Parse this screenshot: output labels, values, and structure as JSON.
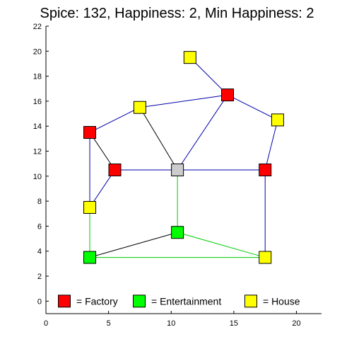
{
  "title": "Spice: 132, Happiness: 2, Min Happiness: 2",
  "chart_data": {
    "type": "scatter",
    "title": "Spice: 132, Happiness: 2, Min Happiness: 2",
    "xlabel": "",
    "ylabel": "",
    "xlim": [
      0,
      22
    ],
    "ylim": [
      -1,
      22
    ],
    "x_ticks": [
      0,
      5,
      10,
      15,
      20
    ],
    "y_ticks": [
      0,
      2,
      4,
      6,
      8,
      10,
      12,
      14,
      16,
      18,
      20,
      22
    ],
    "grid": false,
    "node_colors": {
      "factory": "#ff0000",
      "entertainment": "#00ff00",
      "house": "#ffff00",
      "empty": "#cccccc"
    },
    "edge_colors": {
      "blue": "#0000aa",
      "green": "#00cc00",
      "black": "#000000"
    },
    "nodes": [
      {
        "id": "A",
        "x": 11.5,
        "y": 19.5,
        "kind": "house"
      },
      {
        "id": "B",
        "x": 14.5,
        "y": 16.5,
        "kind": "factory"
      },
      {
        "id": "C",
        "x": 7.5,
        "y": 15.5,
        "kind": "house"
      },
      {
        "id": "D",
        "x": 18.5,
        "y": 14.5,
        "kind": "house"
      },
      {
        "id": "E",
        "x": 3.5,
        "y": 13.5,
        "kind": "factory"
      },
      {
        "id": "F",
        "x": 5.5,
        "y": 10.5,
        "kind": "factory"
      },
      {
        "id": "G",
        "x": 10.5,
        "y": 10.5,
        "kind": "empty"
      },
      {
        "id": "H",
        "x": 17.5,
        "y": 10.5,
        "kind": "factory"
      },
      {
        "id": "I",
        "x": 3.5,
        "y": 7.5,
        "kind": "house"
      },
      {
        "id": "J",
        "x": 10.5,
        "y": 5.5,
        "kind": "entertainment"
      },
      {
        "id": "K",
        "x": 3.5,
        "y": 3.5,
        "kind": "entertainment"
      },
      {
        "id": "L",
        "x": 17.5,
        "y": 3.5,
        "kind": "house"
      }
    ],
    "edges": [
      {
        "from": "A",
        "to": "B",
        "color": "blue"
      },
      {
        "from": "C",
        "to": "B",
        "color": "blue"
      },
      {
        "from": "B",
        "to": "D",
        "color": "blue"
      },
      {
        "from": "E",
        "to": "C",
        "color": "blue"
      },
      {
        "from": "C",
        "to": "G",
        "color": "black"
      },
      {
        "from": "B",
        "to": "G",
        "color": "blue"
      },
      {
        "from": "D",
        "to": "H",
        "color": "blue"
      },
      {
        "from": "E",
        "to": "F",
        "color": "black"
      },
      {
        "from": "E",
        "to": "I",
        "color": "blue"
      },
      {
        "from": "F",
        "to": "G",
        "color": "blue"
      },
      {
        "from": "G",
        "to": "H",
        "color": "blue"
      },
      {
        "from": "F",
        "to": "I",
        "color": "blue"
      },
      {
        "from": "G",
        "to": "J",
        "color": "green"
      },
      {
        "from": "H",
        "to": "L",
        "color": "blue"
      },
      {
        "from": "I",
        "to": "K",
        "color": "green"
      },
      {
        "from": "K",
        "to": "J",
        "color": "black"
      },
      {
        "from": "J",
        "to": "L",
        "color": "green"
      },
      {
        "from": "K",
        "to": "L",
        "color": "green"
      }
    ],
    "legend": {
      "placement": "bottom",
      "entries": [
        {
          "kind": "factory",
          "label": "= Factory"
        },
        {
          "kind": "entertainment",
          "label": "= Entertainment"
        },
        {
          "kind": "house",
          "label": "= House"
        }
      ]
    }
  }
}
